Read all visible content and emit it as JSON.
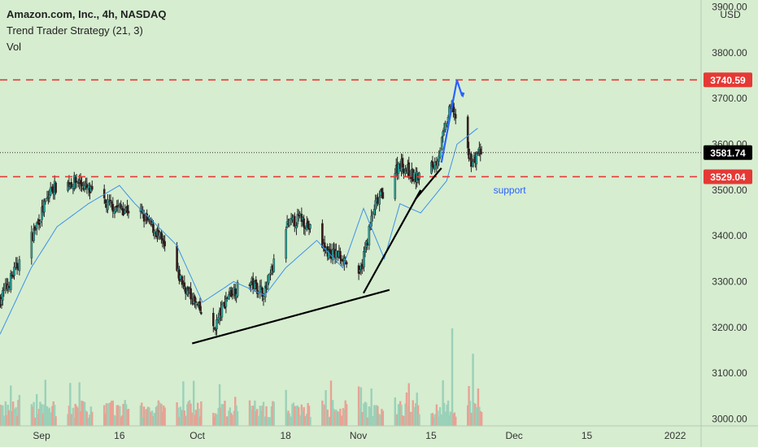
{
  "header": {
    "symbol": "Amazon.com, Inc., 4h, NASDAQ",
    "indicator": "Trend Trader Strategy (21, 3)",
    "volume_label": "Vol"
  },
  "colors": {
    "background": "#d6edd0",
    "up": "#26a69a",
    "down": "#ef5350",
    "band": "#3c93e8",
    "resistance": "#e53935",
    "trend": "#000000",
    "arrow": "#2962ff",
    "support_text": "#2962ff",
    "last_price_bg": "#000000"
  },
  "chart_data": {
    "type": "candlestick",
    "currency_label": "USD",
    "y_ticks": [
      "3900.00",
      "3800.00",
      "3700.00",
      "3600.00",
      "3500.00",
      "3400.00",
      "3300.00",
      "3200.00",
      "3100.00",
      "3000.00"
    ],
    "y_tick_values": [
      3900,
      3800,
      3700,
      3600,
      3500,
      3400,
      3300,
      3200,
      3100,
      3000
    ],
    "x_ticks": [
      "Sep",
      "16",
      "Oct",
      "18",
      "Nov",
      "15",
      "Dec",
      "15",
      "2022"
    ],
    "x_tick_dates": [
      "2021-09-01",
      "2021-09-16",
      "2021-10-01",
      "2021-10-18",
      "2021-11-01",
      "2021-11-15",
      "2021-12-01",
      "2021-12-15",
      "2022-01-01"
    ],
    "axis_start_date": "2021-08-24",
    "axis_end_date": "2022-01-06",
    "y_range": [
      2985,
      3915
    ],
    "price_labels": [
      {
        "text": "3740.59",
        "value": 3740.59,
        "style": "resistance"
      },
      {
        "text": "3581.74",
        "value": 3581.74,
        "style": "last"
      },
      {
        "text": "3529.04",
        "value": 3529.04,
        "style": "resistance"
      }
    ],
    "horizontal_lines": [
      3740.59,
      3529.04
    ],
    "annotations": [
      {
        "text": "support",
        "date": "2021-11-27",
        "value": 3500
      }
    ],
    "trend_lines": [
      {
        "start": [
          "2021-09-30",
          3165
        ],
        "end": [
          "2021-11-07",
          3282
        ]
      },
      {
        "start": [
          "2021-11-02",
          3275
        ],
        "end": [
          "2021-11-13",
          3500
        ]
      },
      {
        "start": [
          "2021-11-12",
          3480
        ],
        "end": [
          "2021-11-17",
          3548
        ]
      }
    ],
    "arrow": {
      "from": [
        "2021-11-17",
        3560
      ],
      "to": [
        "2021-11-20",
        3740
      ],
      "tip": [
        "2021-11-21",
        3705
      ]
    },
    "anchors": [
      {
        "date": "2021-08-24",
        "close": 3260
      },
      {
        "date": "2021-08-30",
        "close": 3395
      },
      {
        "date": "2021-09-03",
        "close": 3505
      },
      {
        "date": "2021-09-08",
        "close": 3520
      },
      {
        "date": "2021-09-13",
        "close": 3470
      },
      {
        "date": "2021-09-20",
        "close": 3450
      },
      {
        "date": "2021-09-23",
        "close": 3410
      },
      {
        "date": "2021-09-28",
        "close": 3300
      },
      {
        "date": "2021-10-04",
        "close": 3190
      },
      {
        "date": "2021-10-07",
        "close": 3275
      },
      {
        "date": "2021-10-11",
        "close": 3300
      },
      {
        "date": "2021-10-14",
        "close": 3275
      },
      {
        "date": "2021-10-18",
        "close": 3420
      },
      {
        "date": "2021-10-21",
        "close": 3440
      },
      {
        "date": "2021-10-26",
        "close": 3365
      },
      {
        "date": "2021-10-29",
        "close": 3355
      },
      {
        "date": "2021-11-01",
        "close": 3300
      },
      {
        "date": "2021-11-04",
        "close": 3460
      },
      {
        "date": "2021-11-09",
        "close": 3560
      },
      {
        "date": "2021-11-12",
        "close": 3525
      },
      {
        "date": "2021-11-16",
        "close": 3560
      },
      {
        "date": "2021-11-19",
        "close": 3690
      },
      {
        "date": "2021-11-21",
        "close": 3600
      },
      {
        "date": "2021-11-23",
        "close": 3560
      },
      {
        "date": "2021-11-24",
        "close": 3581.74
      }
    ],
    "band_anchors": [
      {
        "date": "2021-08-24",
        "value": 3185
      },
      {
        "date": "2021-08-30",
        "value": 3330
      },
      {
        "date": "2021-09-04",
        "value": 3420
      },
      {
        "date": "2021-09-10",
        "value": 3470
      },
      {
        "date": "2021-09-16",
        "value": 3510
      },
      {
        "date": "2021-09-19",
        "value": 3470
      },
      {
        "date": "2021-09-27",
        "value": 3380
      },
      {
        "date": "2021-10-02",
        "value": 3255
      },
      {
        "date": "2021-10-08",
        "value": 3300
      },
      {
        "date": "2021-10-14",
        "value": 3270
      },
      {
        "date": "2021-10-18",
        "value": 3330
      },
      {
        "date": "2021-10-24",
        "value": 3390
      },
      {
        "date": "2021-10-29",
        "value": 3330
      },
      {
        "date": "2021-11-02",
        "value": 3460
      },
      {
        "date": "2021-11-06",
        "value": 3350
      },
      {
        "date": "2021-11-09",
        "value": 3470
      },
      {
        "date": "2021-11-13",
        "value": 3450
      },
      {
        "date": "2021-11-18",
        "value": 3520
      },
      {
        "date": "2021-11-20",
        "value": 3600
      },
      {
        "date": "2021-11-24",
        "value": 3635
      }
    ],
    "volume_max_label": "",
    "volume_spikes": [
      {
        "date": "2021-11-19",
        "value": 1.0
      },
      {
        "date": "2021-11-23",
        "value": 0.74
      }
    ]
  }
}
